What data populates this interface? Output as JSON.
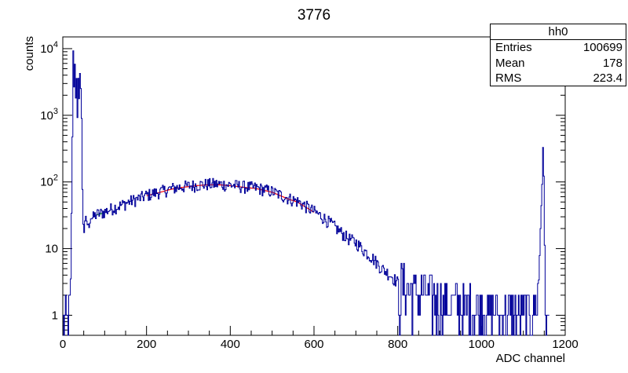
{
  "chart_data": {
    "type": "line",
    "title": "3776",
    "xlabel": "ADC channel",
    "ylabel": "counts",
    "xlim": [
      0,
      1200
    ],
    "ylim": [
      0.5,
      15000
    ],
    "y_scale": "log",
    "grid": false,
    "x_ticks": [
      0,
      200,
      400,
      600,
      800,
      1000,
      1200
    ],
    "y_ticks": [
      {
        "value": 1,
        "label": "1"
      },
      {
        "value": 10,
        "label": "10"
      },
      {
        "value": 100,
        "label": "10^2"
      },
      {
        "value": 1000,
        "label": "10^3"
      },
      {
        "value": 10000,
        "label": "10^4"
      }
    ],
    "series": [
      {
        "color": "#000099",
        "points": [
          [
            0,
            0.6
          ],
          [
            5,
            1
          ],
          [
            10,
            1
          ],
          [
            15,
            1
          ],
          [
            18,
            3
          ],
          [
            20,
            30
          ],
          [
            22,
            500
          ],
          [
            24,
            8000
          ],
          [
            26,
            3000
          ],
          [
            28,
            5500
          ],
          [
            30,
            2000
          ],
          [
            32,
            4000
          ],
          [
            34,
            800
          ],
          [
            36,
            3000
          ],
          [
            38,
            1500
          ],
          [
            40,
            5000
          ],
          [
            42,
            2500
          ],
          [
            44,
            800
          ],
          [
            46,
            80
          ],
          [
            48,
            25
          ],
          [
            50,
            18
          ],
          [
            55,
            28
          ],
          [
            60,
            20
          ],
          [
            65,
            30
          ],
          [
            70,
            28
          ],
          [
            80,
            32
          ],
          [
            90,
            33
          ],
          [
            100,
            35
          ],
          [
            120,
            40
          ],
          [
            140,
            44
          ],
          [
            160,
            50
          ],
          [
            180,
            55
          ],
          [
            200,
            62
          ],
          [
            220,
            67
          ],
          [
            240,
            72
          ],
          [
            260,
            78
          ],
          [
            280,
            82
          ],
          [
            300,
            85
          ],
          [
            320,
            88
          ],
          [
            340,
            90
          ],
          [
            360,
            91
          ],
          [
            380,
            90
          ],
          [
            400,
            88
          ],
          [
            420,
            85
          ],
          [
            440,
            82
          ],
          [
            460,
            80
          ],
          [
            480,
            75
          ],
          [
            500,
            70
          ],
          [
            520,
            62
          ],
          [
            540,
            55
          ],
          [
            560,
            50
          ],
          [
            580,
            42
          ],
          [
            600,
            35
          ],
          [
            620,
            29
          ],
          [
            640,
            23
          ],
          [
            660,
            18
          ],
          [
            680,
            14
          ],
          [
            700,
            12
          ],
          [
            720,
            9
          ],
          [
            740,
            7
          ],
          [
            760,
            5
          ],
          [
            780,
            4
          ],
          [
            800,
            3
          ],
          [
            820,
            2.5
          ],
          [
            840,
            2
          ],
          [
            860,
            2
          ],
          [
            880,
            1.8
          ],
          [
            900,
            1.5
          ],
          [
            920,
            1.5
          ],
          [
            940,
            1.5
          ],
          [
            960,
            1.3
          ],
          [
            980,
            1.2
          ],
          [
            1000,
            1.2
          ],
          [
            1020,
            1
          ],
          [
            1040,
            1
          ],
          [
            1060,
            1
          ],
          [
            1080,
            1
          ],
          [
            1100,
            1
          ],
          [
            1120,
            1
          ],
          [
            1135,
            2
          ],
          [
            1140,
            20
          ],
          [
            1144,
            100
          ],
          [
            1146,
            360
          ],
          [
            1148,
            100
          ],
          [
            1150,
            10
          ],
          [
            1152,
            1
          ],
          [
            1160,
            0.6
          ]
        ]
      }
    ],
    "fits": [
      {
        "color": "#ff0000",
        "x_range": [
          200,
          600
        ]
      },
      {
        "color": "#00aa00",
        "x_range": [
          80,
          100
        ]
      }
    ]
  },
  "stats": {
    "name": "hh0",
    "rows": [
      {
        "label": "Entries",
        "value": "100699"
      },
      {
        "label": "Mean",
        "value": "178"
      },
      {
        "label": "RMS",
        "value": "223.4"
      }
    ]
  }
}
